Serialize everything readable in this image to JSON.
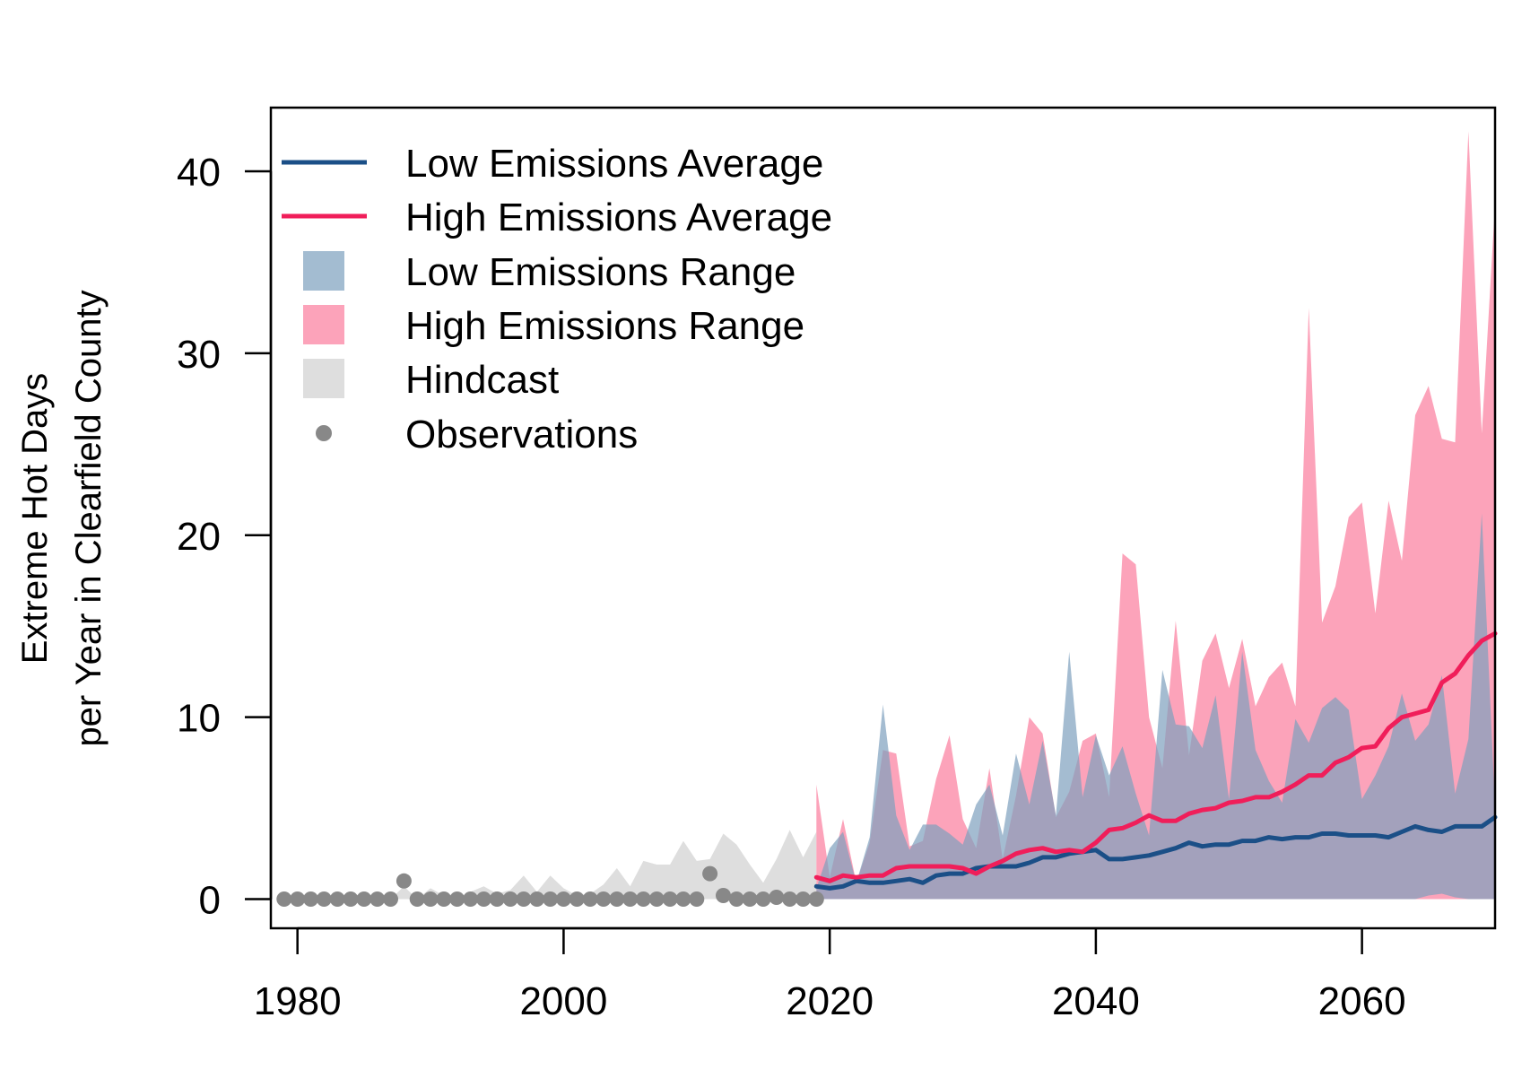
{
  "chart_data": {
    "type": "area",
    "title": "",
    "xlabel": "",
    "ylabel_lines": [
      "Extreme Hot Days",
      "per Year in Clearfield County"
    ],
    "xlim": [
      1978,
      2070
    ],
    "ylim": [
      -1.6,
      43.5
    ],
    "x_ticks": [
      1980,
      2000,
      2020,
      2040,
      2060
    ],
    "y_ticks": [
      0,
      10,
      20,
      30,
      40
    ],
    "grid": false,
    "legend_position": "top-left",
    "legend": [
      {
        "label": "Low Emissions Average",
        "kind": "line",
        "color": "#1b4f87"
      },
      {
        "label": "High Emissions Average",
        "kind": "line",
        "color": "#f01e5a"
      },
      {
        "label": "Low Emissions Range",
        "kind": "box",
        "color": "#a3bcd1"
      },
      {
        "label": "High Emissions Range",
        "kind": "box",
        "color": "#fca3ba"
      },
      {
        "label": "Hindcast",
        "kind": "box",
        "color": "#dedede"
      },
      {
        "label": "Observations",
        "kind": "point",
        "color": "#888888"
      }
    ],
    "colors": {
      "hindcast": "#dedede",
      "low_range": "#7d9fbd",
      "low_range_opacity": 0.7,
      "high_range": "#fca3ba",
      "low_avg": "#1b4f87",
      "high_avg": "#f01e5a",
      "observations": "#888888"
    },
    "hindcast_range": {
      "x": [
        1979,
        1980,
        1981,
        1982,
        1983,
        1984,
        1985,
        1986,
        1987,
        1988,
        1989,
        1990,
        1991,
        1992,
        1993,
        1994,
        1995,
        1996,
        1997,
        1998,
        1999,
        2000,
        2001,
        2002,
        2003,
        2004,
        2005,
        2006,
        2007,
        2008,
        2009,
        2010,
        2011,
        2012,
        2013,
        2014,
        2015,
        2016,
        2017,
        2018,
        2019
      ],
      "min": [
        0,
        0,
        0,
        0,
        0,
        0,
        0,
        0,
        0,
        0,
        0,
        0,
        0,
        0,
        0,
        0,
        0,
        0,
        0,
        0,
        0,
        0,
        0,
        0,
        0,
        0,
        0,
        0,
        0,
        0,
        0,
        0,
        0,
        0,
        0,
        0,
        0,
        0,
        0,
        0,
        0
      ],
      "max": [
        0,
        0,
        0,
        0,
        0,
        0.2,
        0.1,
        0,
        0,
        0.7,
        0,
        0.6,
        0.2,
        0,
        0.4,
        0.7,
        0.3,
        0.5,
        1.3,
        0.4,
        1.3,
        0.6,
        0.2,
        0.3,
        0.8,
        1.7,
        0.7,
        2.1,
        1.9,
        1.9,
        3.2,
        2.1,
        2.2,
        3.6,
        3.0,
        1.9,
        0.9,
        2.2,
        3.8,
        2.3,
        3.7
      ]
    },
    "observations": {
      "x": [
        1979,
        1980,
        1981,
        1982,
        1983,
        1984,
        1985,
        1986,
        1987,
        1988,
        1989,
        1990,
        1991,
        1992,
        1993,
        1994,
        1995,
        1996,
        1997,
        1998,
        1999,
        2000,
        2001,
        2002,
        2003,
        2004,
        2005,
        2006,
        2007,
        2008,
        2009,
        2010,
        2011,
        2012,
        2013,
        2014,
        2015,
        2016,
        2017,
        2018,
        2019
      ],
      "y": [
        0,
        0,
        0,
        0,
        0,
        0,
        0,
        0,
        0,
        1,
        0,
        0,
        0,
        0,
        0,
        0,
        0,
        0,
        0,
        0,
        0,
        0,
        0,
        0,
        0,
        0,
        0,
        0,
        0,
        0,
        0,
        0,
        1.4,
        0.2,
        0,
        0,
        0,
        0.1,
        0,
        0,
        0
      ]
    },
    "projection_x": [
      2019,
      2020,
      2021,
      2022,
      2023,
      2024,
      2025,
      2026,
      2027,
      2028,
      2029,
      2030,
      2031,
      2032,
      2033,
      2034,
      2035,
      2036,
      2037,
      2038,
      2039,
      2040,
      2041,
      2042,
      2043,
      2044,
      2045,
      2046,
      2047,
      2048,
      2049,
      2050,
      2051,
      2052,
      2053,
      2054,
      2055,
      2056,
      2057,
      2058,
      2059,
      2060,
      2061,
      2062,
      2063,
      2064,
      2065,
      2066,
      2067,
      2068,
      2069,
      2070
    ],
    "high_range_max": [
      6.3,
      1.2,
      4.4,
      0.9,
      3.1,
      8.2,
      8.0,
      2.9,
      3.2,
      6.6,
      9.0,
      4.4,
      2.8,
      7.2,
      2.2,
      5.7,
      10.0,
      9.1,
      4.5,
      5.9,
      8.7,
      9.1,
      5.6,
      19.0,
      18.4,
      10.0,
      7.2,
      15.3,
      7.9,
      13.1,
      14.6,
      11.6,
      14.3,
      10.6,
      12.2,
      13.0,
      10.6,
      32.5,
      15.2,
      17.2,
      21.0,
      21.8,
      15.7,
      21.9,
      18.6,
      26.6,
      28.2,
      25.3,
      25.1,
      42.2,
      25.6,
      38.2
    ],
    "high_range_min": [
      0,
      0,
      0,
      0,
      0,
      0,
      0,
      0,
      0,
      0,
      0,
      0,
      0,
      0,
      0,
      0,
      0,
      0,
      0,
      0,
      0,
      0,
      0,
      0,
      0,
      0,
      0,
      0,
      0,
      0,
      0,
      0,
      0,
      0,
      0,
      0,
      0,
      0,
      0,
      0,
      0,
      0,
      0,
      0,
      0,
      0,
      0,
      0,
      0,
      0,
      0,
      0
    ],
    "low_range_max": [
      0.6,
      2.8,
      3.7,
      0.9,
      3.4,
      10.7,
      4.6,
      2.7,
      4.1,
      4.1,
      3.6,
      3.0,
      5.2,
      6.3,
      3.5,
      8.0,
      5.2,
      8.7,
      4.6,
      13.6,
      5.6,
      9.0,
      6.8,
      8.4,
      5.8,
      3.5,
      12.6,
      9.6,
      9.5,
      8.3,
      11.2,
      5.5,
      13.6,
      8.2,
      6.5,
      5.3,
      9.9,
      8.6,
      10.5,
      11.1,
      10.4,
      5.5,
      6.8,
      8.4,
      11.3,
      8.7,
      9.6,
      12.3,
      5.8,
      8.8,
      21.2,
      5.0
    ],
    "low_range_min": [
      0,
      0,
      0,
      0,
      0,
      0,
      0,
      0,
      0,
      0,
      0,
      0,
      0,
      0,
      0,
      0,
      0,
      0,
      0,
      0,
      0,
      0,
      0,
      0,
      0,
      0,
      0,
      0,
      0,
      0,
      0,
      0,
      0,
      0,
      0,
      0,
      0,
      0,
      0,
      0,
      0,
      0,
      0,
      0,
      0,
      0,
      0.2,
      0.3,
      0.1,
      0,
      0,
      0
    ],
    "low_avg": [
      0.7,
      0.6,
      0.7,
      1.0,
      0.9,
      0.9,
      1.0,
      1.1,
      0.9,
      1.3,
      1.4,
      1.4,
      1.7,
      1.8,
      1.8,
      1.8,
      2.0,
      2.3,
      2.3,
      2.5,
      2.6,
      2.7,
      2.2,
      2.2,
      2.3,
      2.4,
      2.6,
      2.8,
      3.1,
      2.9,
      3.0,
      3.0,
      3.2,
      3.2,
      3.4,
      3.3,
      3.4,
      3.4,
      3.6,
      3.6,
      3.5,
      3.5,
      3.5,
      3.4,
      3.7,
      4.0,
      3.8,
      3.7,
      4.0,
      4.0,
      4.0,
      4.5
    ],
    "high_avg": [
      1.2,
      1.0,
      1.3,
      1.2,
      1.3,
      1.3,
      1.7,
      1.8,
      1.8,
      1.8,
      1.8,
      1.7,
      1.4,
      1.8,
      2.1,
      2.5,
      2.7,
      2.8,
      2.6,
      2.7,
      2.6,
      3.1,
      3.8,
      3.9,
      4.2,
      4.6,
      4.3,
      4.3,
      4.7,
      4.9,
      5.0,
      5.3,
      5.4,
      5.6,
      5.6,
      5.9,
      6.3,
      6.8,
      6.8,
      7.5,
      7.8,
      8.3,
      8.4,
      9.4,
      10.0,
      10.2,
      10.4,
      11.9,
      12.4,
      13.4,
      14.2,
      14.6
    ]
  }
}
